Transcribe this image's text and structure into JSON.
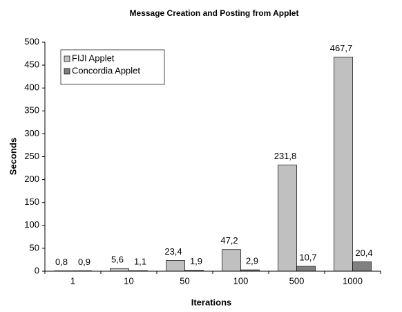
{
  "chart_data": {
    "type": "bar",
    "title": "Message Creation and Posting from Applet",
    "x_label": "Iterations",
    "y_label": "Seconds",
    "categories": [
      "1",
      "10",
      "50",
      "100",
      "500",
      "1000"
    ],
    "series": [
      {
        "name": "FIJI Applet",
        "color": "#c0c0c0",
        "values": [
          0.8,
          5.6,
          23.4,
          47.2,
          231.8,
          467.7
        ],
        "value_labels": [
          "0,8",
          "5,6",
          "23,4",
          "47,2",
          "231,8",
          "467,7"
        ]
      },
      {
        "name": "Concordia Applet",
        "color": "#808080",
        "values": [
          0.9,
          1.1,
          1.9,
          2.9,
          10.7,
          20.4
        ],
        "value_labels": [
          "0,9",
          "1,1",
          "1,9",
          "2,9",
          "10,7",
          "20,4"
        ]
      }
    ],
    "ylim": [
      0,
      500
    ],
    "yticks": [
      0,
      50,
      100,
      150,
      200,
      250,
      300,
      350,
      400,
      450,
      500
    ],
    "legend": "upper left"
  }
}
